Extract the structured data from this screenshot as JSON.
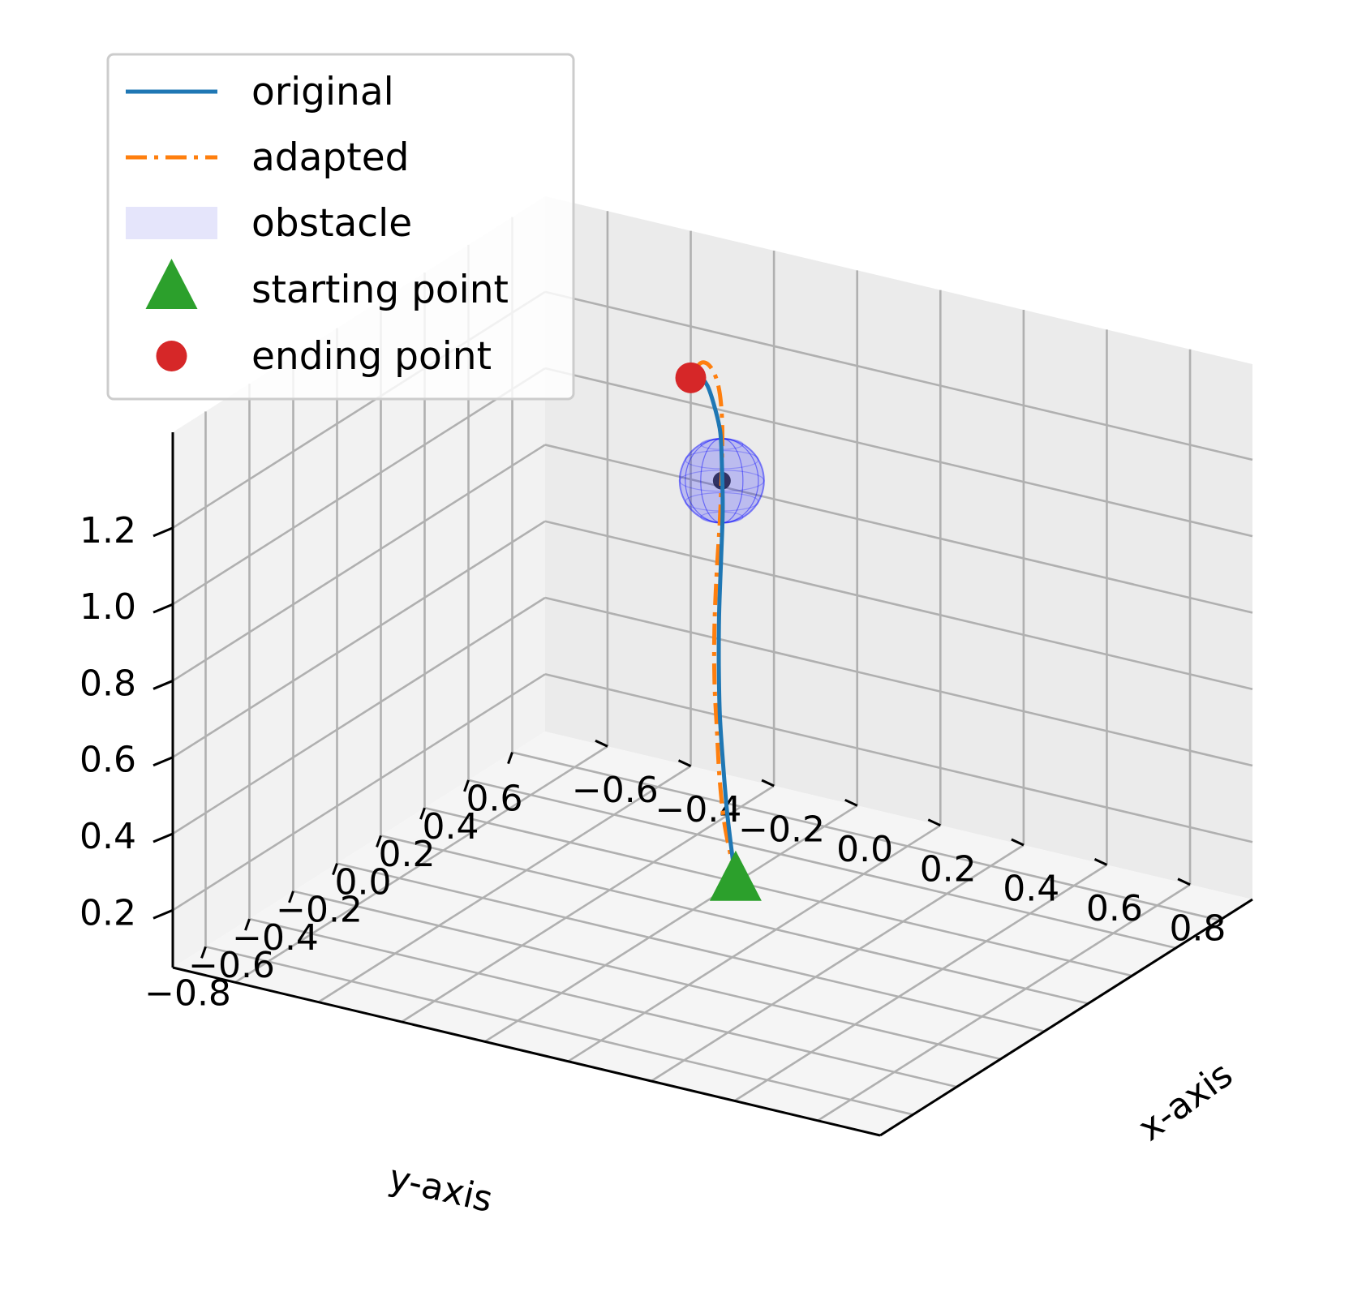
{
  "chart_data": {
    "type": "line",
    "projection": "3d",
    "title": "",
    "xlabel": "x-axis",
    "ylabel": "y-axis",
    "zlabel": "",
    "xlim": [
      -0.75,
      0.95
    ],
    "ylim": [
      -0.95,
      0.75
    ],
    "zlim": [
      0.05,
      1.45
    ],
    "xticks": [
      -0.6,
      -0.4,
      -0.2,
      0.0,
      0.2,
      0.4,
      0.6,
      0.8
    ],
    "xtick_labels": [
      "−0.6",
      "−0.4",
      "−0.2",
      "0.0",
      "0.2",
      "0.4",
      "0.6",
      "0.8"
    ],
    "yticks": [
      -0.8,
      -0.6,
      -0.4,
      -0.2,
      0.0,
      0.2,
      0.4,
      0.6
    ],
    "ytick_labels": [
      "−0.8",
      "−0.6",
      "−0.4",
      "−0.2",
      "0.0",
      "0.2",
      "0.4",
      "0.6"
    ],
    "zticks": [
      0.2,
      0.4,
      0.6,
      0.8,
      1.0,
      1.2
    ],
    "ztick_labels": [
      "0.2",
      "0.4",
      "0.6",
      "0.8",
      "1.0",
      "1.2"
    ],
    "grid": true,
    "legend_position": "top-left",
    "series": [
      {
        "name": "original",
        "style": "solid",
        "color": "#1f77b4",
        "x": [
          0.05,
          0.052,
          0.056,
          0.062,
          0.07,
          0.078,
          0.084,
          0.086,
          0.082,
          0.07,
          0.05,
          0.02,
          -0.018,
          -0.06,
          -0.1
        ],
        "y": [
          0.1,
          0.08,
          0.05,
          0.02,
          -0.01,
          -0.03,
          -0.04,
          -0.035,
          -0.02,
          0.0,
          0.03,
          0.06,
          0.1,
          0.14,
          0.18
        ],
        "z": [
          0.1,
          0.18,
          0.3,
          0.44,
          0.58,
          0.72,
          0.86,
          1.0,
          1.12,
          1.22,
          1.3,
          1.35,
          1.38,
          1.38,
          1.35
        ]
      },
      {
        "name": "adapted",
        "style": "dashdot",
        "color": "#ff7f0e",
        "x": [
          0.05,
          0.06,
          0.075,
          0.09,
          0.105,
          0.115,
          0.12,
          0.12,
          0.112,
          0.096,
          0.07,
          0.035,
          -0.01,
          -0.06,
          -0.1
        ],
        "y": [
          0.1,
          0.06,
          0.0,
          -0.05,
          -0.09,
          -0.12,
          -0.13,
          -0.12,
          -0.09,
          -0.05,
          0.0,
          0.05,
          0.1,
          0.15,
          0.18
        ],
        "z": [
          0.1,
          0.18,
          0.3,
          0.44,
          0.58,
          0.72,
          0.86,
          1.0,
          1.13,
          1.25,
          1.35,
          1.41,
          1.43,
          1.41,
          1.35
        ]
      }
    ],
    "obstacle": {
      "name": "obstacle",
      "shape": "sphere",
      "center": [
        0.08,
        -0.02,
        1.2
      ],
      "radius": 0.08,
      "color": "#0000ff"
    },
    "markers": [
      {
        "name": "starting point",
        "shape": "triangle",
        "color": "#2ca02c",
        "x": 0.05,
        "y": 0.1,
        "z": 0.1
      },
      {
        "name": "ending point",
        "shape": "circle",
        "color": "#d62728",
        "x": -0.1,
        "y": 0.18,
        "z": 1.35
      }
    ],
    "legend": [
      {
        "label": "original",
        "kind": "line",
        "color": "#1f77b4"
      },
      {
        "label": "adapted",
        "kind": "dashdot",
        "color": "#ff7f0e"
      },
      {
        "label": "obstacle",
        "kind": "patch",
        "color": "#e5e5fb"
      },
      {
        "label": "starting point",
        "kind": "triangle",
        "color": "#2ca02c"
      },
      {
        "label": "ending point",
        "kind": "circle",
        "color": "#d62728"
      }
    ]
  }
}
